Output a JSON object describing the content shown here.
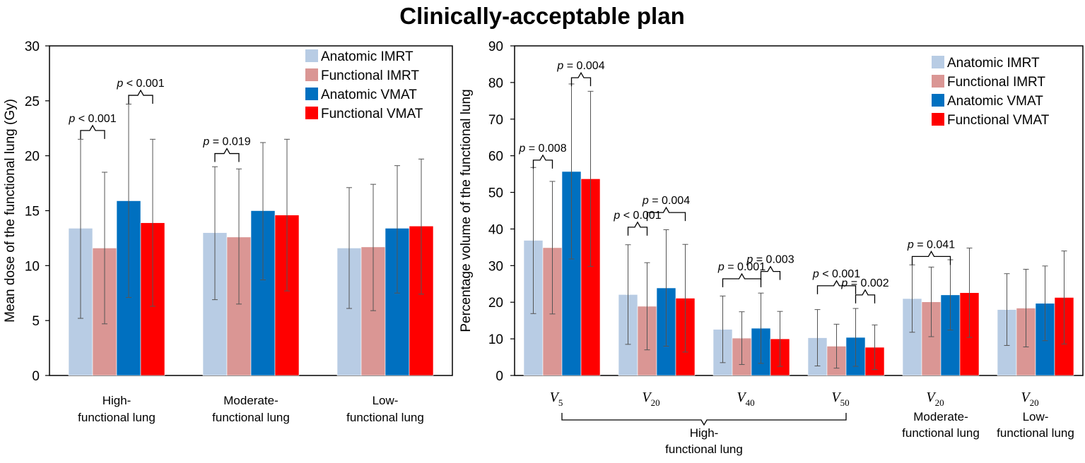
{
  "title": "Clinically-acceptable plan",
  "colors": {
    "Anatomic IMRT": "#b8cce4",
    "Functional IMRT": "#da9694",
    "Anatomic VMAT": "#0070c0",
    "Functional VMAT": "#ff0000"
  },
  "chart_data": [
    {
      "type": "bar",
      "ylabel": "Mean dose of the functional lung (Gy)",
      "ylim": [
        0,
        30
      ],
      "yticks": [
        0,
        5,
        10,
        15,
        20,
        25,
        30
      ],
      "legend": "top-right",
      "categories": [
        [
          "High-",
          "functional lung"
        ],
        [
          "Moderate-",
          "functional lung"
        ],
        [
          "Low-",
          "functional lung"
        ]
      ],
      "series": [
        {
          "name": "Anatomic IMRT",
          "values": [
            13.4,
            13.0,
            11.6
          ],
          "sd_upper": [
            21.5,
            19.0,
            17.1
          ],
          "sd_lower": [
            5.2,
            6.9,
            6.1
          ]
        },
        {
          "name": "Functional IMRT",
          "values": [
            11.6,
            12.6,
            11.7
          ],
          "sd_upper": [
            18.5,
            18.8,
            17.4
          ],
          "sd_lower": [
            4.7,
            6.5,
            5.9
          ]
        },
        {
          "name": "Anatomic VMAT",
          "values": [
            15.9,
            15.0,
            13.4
          ],
          "sd_upper": [
            24.7,
            21.2,
            19.1
          ],
          "sd_lower": [
            7.1,
            8.7,
            7.5
          ]
        },
        {
          "name": "Functional VMAT",
          "values": [
            13.9,
            14.6,
            13.6
          ],
          "sd_upper": [
            21.5,
            21.5,
            19.7
          ],
          "sd_lower": [
            6.3,
            7.7,
            7.4
          ]
        }
      ],
      "annotations": [
        {
          "label": "p < 0.001",
          "group": 0,
          "from": 0,
          "to": 1,
          "level": 22.3
        },
        {
          "label": "p < 0.001",
          "group": 0,
          "from": 2,
          "to": 3,
          "level": 25.5
        },
        {
          "label": "p = 0.019",
          "group": 1,
          "from": 0,
          "to": 1,
          "level": 20.2
        }
      ]
    },
    {
      "type": "bar",
      "ylabel": "Percentage volume of the functional lung",
      "ylim": [
        0,
        90
      ],
      "yticks": [
        0,
        10,
        20,
        30,
        40,
        50,
        60,
        70,
        80,
        90
      ],
      "legend": "top-right",
      "categories": [
        {
          "symbol": "V",
          "sub": "5"
        },
        {
          "symbol": "V",
          "sub": "20"
        },
        {
          "symbol": "V",
          "sub": "40"
        },
        {
          "symbol": "V",
          "sub": "50"
        },
        {
          "symbol": "V",
          "sub": "20",
          "lines": [
            "Moderate-",
            "functional lung"
          ]
        },
        {
          "symbol": "V",
          "sub": "20",
          "lines": [
            "Low-",
            "functional lung"
          ]
        }
      ],
      "group_label": {
        "lines": [
          "High-",
          "functional lung"
        ],
        "from": 0,
        "to": 3
      },
      "series": [
        {
          "name": "Anatomic IMRT",
          "values": [
            36.9,
            22.1,
            12.6,
            10.3,
            21.0,
            18.0
          ],
          "sd_upper": [
            56.8,
            35.7,
            21.7,
            18.0,
            30.2,
            27.8
          ],
          "sd_lower": [
            16.9,
            8.5,
            3.5,
            2.6,
            11.8,
            8.2
          ]
        },
        {
          "name": "Functional IMRT",
          "values": [
            34.9,
            18.9,
            10.2,
            8.0,
            20.1,
            18.4
          ],
          "sd_upper": [
            53.0,
            30.8,
            17.4,
            14.0,
            29.6,
            29.0
          ],
          "sd_lower": [
            16.8,
            7.0,
            3.0,
            2.0,
            10.6,
            7.8
          ]
        },
        {
          "name": "Anatomic VMAT",
          "values": [
            55.7,
            23.9,
            12.9,
            10.4,
            22.0,
            19.7
          ],
          "sd_upper": [
            79.6,
            39.8,
            22.5,
            18.3,
            31.6,
            29.9
          ],
          "sd_lower": [
            31.8,
            8.0,
            3.3,
            2.5,
            12.4,
            9.5
          ]
        },
        {
          "name": "Functional VMAT",
          "values": [
            53.7,
            21.1,
            10.0,
            7.7,
            22.6,
            21.3
          ],
          "sd_upper": [
            77.6,
            35.8,
            17.5,
            13.8,
            34.8,
            34.0
          ],
          "sd_lower": [
            29.8,
            6.4,
            2.5,
            1.6,
            10.4,
            8.6
          ]
        }
      ],
      "annotations": [
        {
          "label": "p = 0.004",
          "group": 0,
          "from": 2,
          "to": 3,
          "level": 81.3
        },
        {
          "label": "p = 0.008",
          "group": 0,
          "from": 0,
          "to": 1,
          "level": 58.8
        },
        {
          "label": "p < 0.001",
          "group": 1,
          "from": 0,
          "to": 1,
          "level": 40.5
        },
        {
          "label": "p = 0.004",
          "group": 1,
          "from": 1,
          "to": 3,
          "level": 44.5
        },
        {
          "label": "p = 0.001",
          "group": 2,
          "from": 0,
          "to": 2,
          "level": 26.4
        },
        {
          "label": "p = 0.003",
          "group": 2,
          "from": 2,
          "to": 3,
          "level": 28.4
        },
        {
          "label": "p < 0.001",
          "group": 3,
          "from": 0,
          "to": 2,
          "level": 24.5
        },
        {
          "label": "p = 0.002",
          "group": 3,
          "from": 2,
          "to": 3,
          "level": 22.0
        },
        {
          "label": "p = 0.041",
          "group": 4,
          "from": 0,
          "to": 2,
          "level": 32.5
        }
      ]
    }
  ]
}
